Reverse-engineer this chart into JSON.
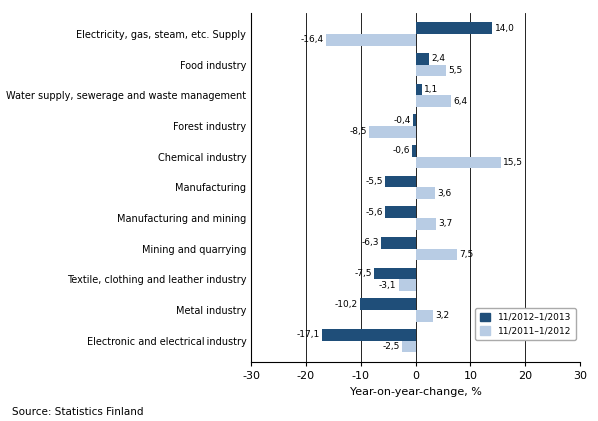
{
  "categories": [
    "Electronic and electrical industry",
    "Metal industry",
    "Textile, clothing and leather industry",
    "Mining and quarrying",
    "Manufacturing and mining",
    "Manufacturing",
    "Chemical industry",
    "Forest industry",
    "Water supply, sewerage and waste management",
    "Food industry",
    "Electricity, gas, steam, etc. Supply"
  ],
  "series1_name": "11/2012–1/2013",
  "series2_name": "11/2011–1/2012",
  "series1_values": [
    -17.1,
    -10.2,
    -7.5,
    -6.3,
    -5.6,
    -5.5,
    -0.6,
    -0.4,
    1.1,
    2.4,
    14.0
  ],
  "series2_values": [
    -2.5,
    3.2,
    -3.1,
    7.5,
    3.7,
    3.6,
    15.5,
    -8.5,
    6.4,
    5.5,
    -16.4
  ],
  "series1_labels": [
    "-17,1",
    "-10,2",
    "-7,5",
    "-6,3",
    "-5,6",
    "-5,5",
    "-0,6",
    "-0,4",
    "1,1",
    "2,4",
    "14,0"
  ],
  "series2_labels": [
    "-2,5",
    "3,2",
    "-3,1",
    "7,5",
    "3,7",
    "3,6",
    "15,5",
    "-8,5",
    "6,4",
    "5,5",
    "-16,4"
  ],
  "series1_color": "#1F4E79",
  "series2_color": "#B8CCE4",
  "xlabel": "Year-on-year-change, %",
  "xlim": [
    -30,
    30
  ],
  "xticks": [
    -30,
    -20,
    -10,
    0,
    10,
    20,
    30
  ],
  "source_text": "Source: Statistics Finland",
  "bar_height": 0.38,
  "figsize": [
    5.98,
    4.21
  ],
  "dpi": 100
}
